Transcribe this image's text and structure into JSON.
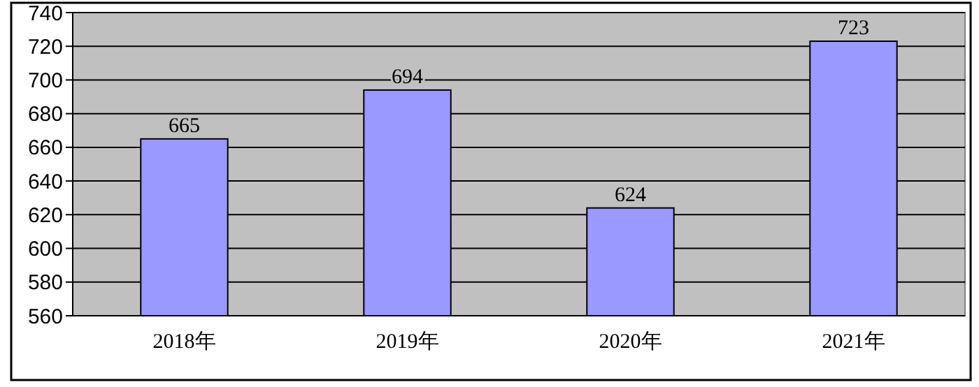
{
  "chart_data": {
    "type": "bar",
    "categories": [
      "2018年",
      "2019年",
      "2020年",
      "2021年"
    ],
    "values": [
      665,
      694,
      624,
      723
    ],
    "color": "#9999ff",
    "data_labels": true,
    "ylim": [
      560,
      740
    ],
    "yticks": [
      560,
      580,
      600,
      620,
      640,
      660,
      680,
      700,
      720,
      740
    ],
    "grid": "y"
  }
}
